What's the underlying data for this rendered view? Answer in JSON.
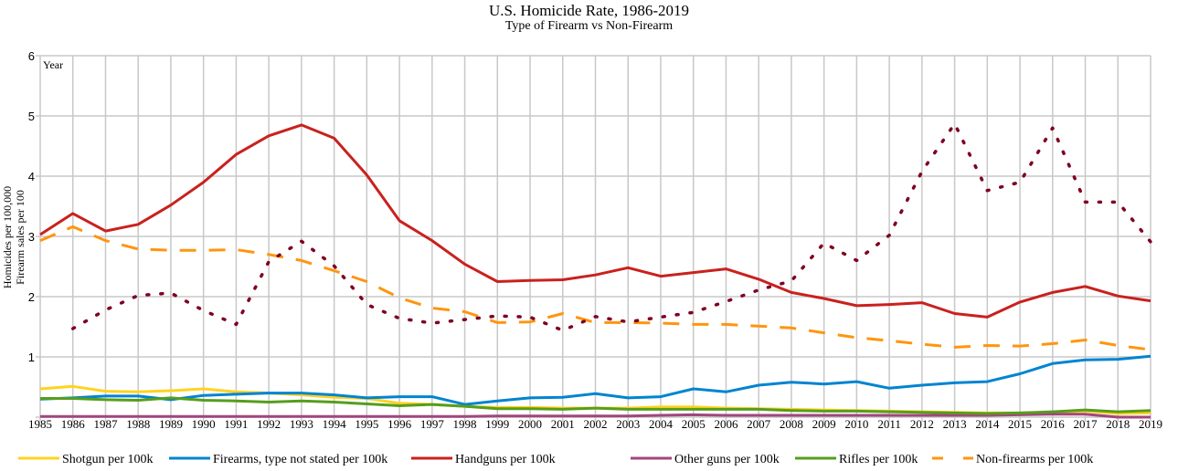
{
  "chart_data": {
    "type": "line",
    "title": "U.S. Homicide Rate, 1986-2019",
    "subtitle": "Type of Firearm vs Non-Firearm",
    "xlabel": "Year",
    "ylabel": [
      "Homicides per 100,000",
      "Firearm sales per 100"
    ],
    "ylim": [
      0,
      6
    ],
    "yticks": [
      "",
      "1",
      "2",
      "3",
      "4",
      "5",
      "6"
    ],
    "grid": true,
    "legend_position": "bottom",
    "x": [
      "1985",
      "1986",
      "1987",
      "1988",
      "1989",
      "1990",
      "1991",
      "1992",
      "1993",
      "1994",
      "1995",
      "1996",
      "1997",
      "1998",
      "1999",
      "2000",
      "2001",
      "2002",
      "2003",
      "2004",
      "2005",
      "2006",
      "2007",
      "2008",
      "2009",
      "2010",
      "2011",
      "2012",
      "2013",
      "2014",
      "2015",
      "2016",
      "2017",
      "2018",
      "2019"
    ],
    "series": [
      {
        "name": "Shotgun per 100k",
        "color": "#ffd320",
        "style": "solid",
        "in_legend": true,
        "values": [
          0.47,
          0.51,
          0.43,
          0.42,
          0.44,
          0.47,
          0.42,
          0.4,
          0.37,
          0.33,
          0.31,
          0.23,
          0.21,
          0.18,
          0.16,
          0.16,
          0.15,
          0.15,
          0.15,
          0.17,
          0.17,
          0.15,
          0.14,
          0.13,
          0.12,
          0.11,
          0.1,
          0.09,
          0.08,
          0.07,
          0.07,
          0.08,
          0.1,
          0.06,
          0.07
        ]
      },
      {
        "name": "Firearms, type not stated per 100k",
        "color": "#0084d1",
        "style": "solid",
        "in_legend": true,
        "values": [
          0.3,
          0.32,
          0.35,
          0.35,
          0.29,
          0.36,
          0.38,
          0.4,
          0.4,
          0.37,
          0.32,
          0.34,
          0.34,
          0.21,
          0.27,
          0.32,
          0.33,
          0.39,
          0.32,
          0.34,
          0.47,
          0.42,
          0.53,
          0.58,
          0.55,
          0.59,
          0.48,
          0.53,
          0.57,
          0.59,
          0.72,
          0.89,
          0.95,
          0.96,
          1.01
        ]
      },
      {
        "name": "Handguns per 100k",
        "color": "#c9211e",
        "style": "solid",
        "in_legend": true,
        "values": [
          3.03,
          3.38,
          3.09,
          3.2,
          3.52,
          3.9,
          4.36,
          4.67,
          4.85,
          4.63,
          4.02,
          3.26,
          2.93,
          2.54,
          2.25,
          2.27,
          2.28,
          2.36,
          2.48,
          2.34,
          2.4,
          2.46,
          2.29,
          2.07,
          1.97,
          1.85,
          1.87,
          1.9,
          1.72,
          1.66,
          1.91,
          2.07,
          2.17,
          2.01,
          1.93
        ]
      },
      {
        "name": "Other guns per 100k",
        "color": "#a1467e",
        "style": "solid",
        "in_legend": true,
        "values": [
          0.01,
          0.01,
          0.01,
          0.01,
          0.01,
          0.01,
          0.01,
          0.01,
          0.01,
          0.01,
          0.01,
          0.01,
          0.01,
          0.01,
          0.02,
          0.02,
          0.02,
          0.02,
          0.02,
          0.03,
          0.04,
          0.03,
          0.03,
          0.03,
          0.03,
          0.03,
          0.03,
          0.03,
          0.03,
          0.03,
          0.04,
          0.05,
          0.05,
          0.0,
          0.0
        ]
      },
      {
        "name": "Rifles per 100k",
        "color": "#579d1c",
        "style": "solid",
        "in_legend": true,
        "values": [
          0.31,
          0.31,
          0.29,
          0.28,
          0.32,
          0.28,
          0.27,
          0.25,
          0.27,
          0.25,
          0.22,
          0.19,
          0.21,
          0.18,
          0.14,
          0.14,
          0.13,
          0.15,
          0.13,
          0.13,
          0.13,
          0.13,
          0.13,
          0.11,
          0.1,
          0.1,
          0.09,
          0.08,
          0.07,
          0.06,
          0.07,
          0.09,
          0.12,
          0.09,
          0.11
        ]
      },
      {
        "name": "Non-firearms per 100k",
        "color": "#ff950e",
        "style": "dashed",
        "in_legend": true,
        "values": [
          2.93,
          3.16,
          2.93,
          2.79,
          2.77,
          2.77,
          2.78,
          2.7,
          2.6,
          2.43,
          2.25,
          1.98,
          1.81,
          1.75,
          1.57,
          1.58,
          1.72,
          1.57,
          1.57,
          1.56,
          1.54,
          1.54,
          1.51,
          1.48,
          1.4,
          1.32,
          1.27,
          1.21,
          1.16,
          1.19,
          1.18,
          1.22,
          1.28,
          1.19,
          1.12
        ]
      },
      {
        "color": "#7e0021",
        "style": "dotted",
        "in_legend": false,
        "values": [
          null,
          1.47,
          1.78,
          2.02,
          2.06,
          1.77,
          1.54,
          2.58,
          2.92,
          2.51,
          1.87,
          1.64,
          1.56,
          1.62,
          1.68,
          1.66,
          1.44,
          1.67,
          1.58,
          1.66,
          1.74,
          1.92,
          2.11,
          2.26,
          2.89,
          2.6,
          3.02,
          4.08,
          4.87,
          3.76,
          3.9,
          4.8,
          3.57,
          3.57,
          2.91
        ]
      }
    ]
  }
}
